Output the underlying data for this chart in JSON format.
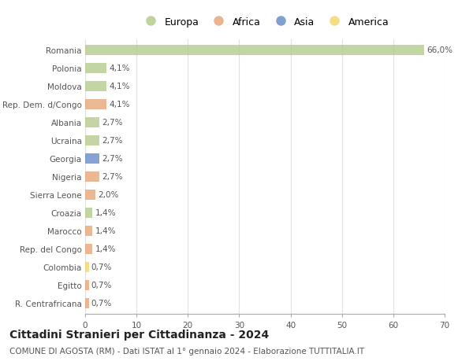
{
  "categories": [
    "Romania",
    "Polonia",
    "Moldova",
    "Rep. Dem. d/Congo",
    "Albania",
    "Ucraina",
    "Georgia",
    "Nigeria",
    "Sierra Leone",
    "Croazia",
    "Marocco",
    "Rep. del Congo",
    "Colombia",
    "Egitto",
    "R. Centrafricana"
  ],
  "values": [
    66.0,
    4.1,
    4.1,
    4.1,
    2.7,
    2.7,
    2.7,
    2.7,
    2.0,
    1.4,
    1.4,
    1.4,
    0.7,
    0.7,
    0.7
  ],
  "labels": [
    "66,0%",
    "4,1%",
    "4,1%",
    "4,1%",
    "2,7%",
    "2,7%",
    "2,7%",
    "2,7%",
    "2,0%",
    "1,4%",
    "1,4%",
    "1,4%",
    "0,7%",
    "0,7%",
    "0,7%"
  ],
  "colors": [
    "#b5cc8e",
    "#b5cc8e",
    "#b5cc8e",
    "#e8a87c",
    "#b5cc8e",
    "#b5cc8e",
    "#6a8fc8",
    "#e8a87c",
    "#e8a87c",
    "#b5cc8e",
    "#e8a87c",
    "#e8a87c",
    "#f5d76e",
    "#e8a87c",
    "#e8a87c"
  ],
  "legend_labels": [
    "Europa",
    "Africa",
    "Asia",
    "America"
  ],
  "legend_colors": [
    "#b5cc8e",
    "#e8a87c",
    "#6a8fc8",
    "#f5d76e"
  ],
  "title": "Cittadini Stranieri per Cittadinanza - 2024",
  "subtitle": "COMUNE DI AGOSTA (RM) - Dati ISTAT al 1° gennaio 2024 - Elaborazione TUTTITALIA.IT",
  "xlim": [
    0,
    70
  ],
  "xticks": [
    0,
    10,
    20,
    30,
    40,
    50,
    60,
    70
  ],
  "background_color": "#ffffff",
  "grid_color": "#e0e0e0",
  "bar_height": 0.55,
  "label_fontsize": 7.5,
  "tick_fontsize": 7.5,
  "title_fontsize": 10,
  "subtitle_fontsize": 7.5
}
